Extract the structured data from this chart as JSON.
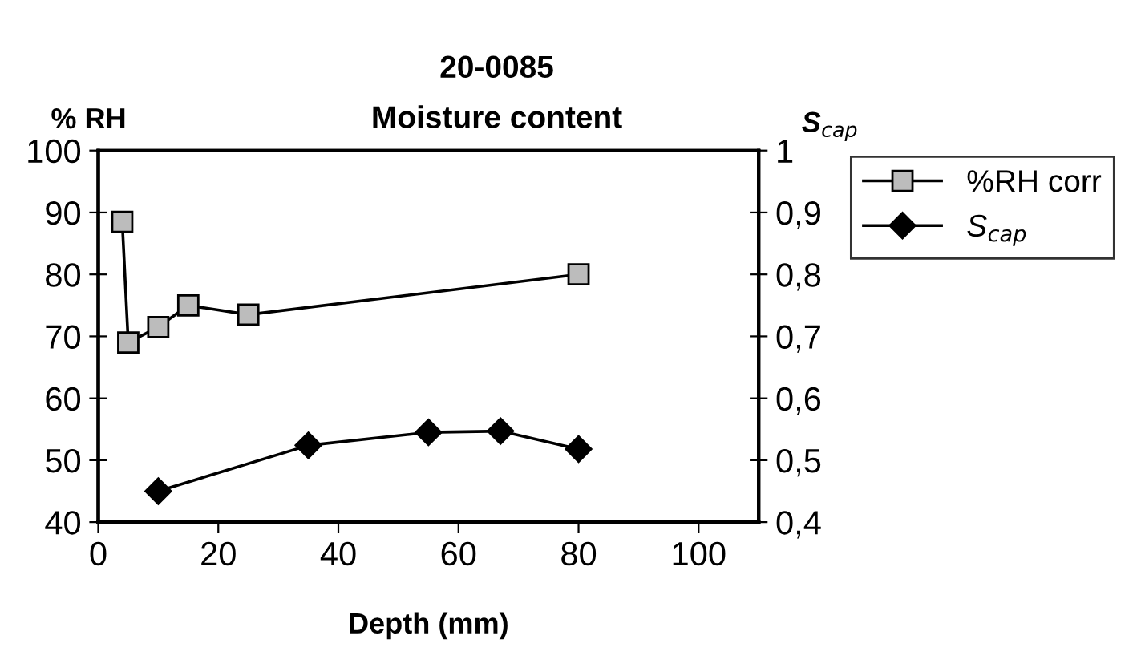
{
  "chart_data": {
    "type": "line",
    "title": "20-0085",
    "subtitle": "Moisture content",
    "xlabel": "Depth (mm)",
    "ylabel": "% RH",
    "y2label": "S$_{cap}$",
    "series": [
      {
        "name": "%RH corr",
        "color": "#000000",
        "marker": "square",
        "x": [
          4,
          5,
          10,
          15,
          25,
          80
        ],
        "values": [
          88.5,
          69,
          71.5,
          75,
          73.5,
          80
        ]
      },
      {
        "name": "S$_{cap}$",
        "color": "#000000",
        "marker": "diamond",
        "axis": "y2",
        "x": [
          10,
          35,
          55,
          67,
          80
        ],
        "values": [
          0.45,
          0.524,
          0.545,
          0.547,
          0.518
        ]
      }
    ],
    "xlim": [
      0,
      110
    ],
    "xticks": [
      0,
      20,
      40,
      60,
      80,
      100
    ],
    "ylim": [
      40,
      100
    ],
    "yticks": [
      40,
      50,
      60,
      70,
      80,
      90,
      100
    ],
    "y2lim": [
      0.4,
      1
    ],
    "y2ticks": [
      {
        "value": 0.4,
        "label": "0,4"
      },
      {
        "value": 0.5,
        "label": "0,5"
      },
      {
        "value": 0.6,
        "label": "0,6"
      },
      {
        "value": 0.7,
        "label": "0,7"
      },
      {
        "value": 0.8,
        "label": "0,8"
      },
      {
        "value": 0.9,
        "label": "0,9"
      },
      1
    ],
    "grid": false,
    "legend": "top right",
    "line_style": "solid"
  }
}
